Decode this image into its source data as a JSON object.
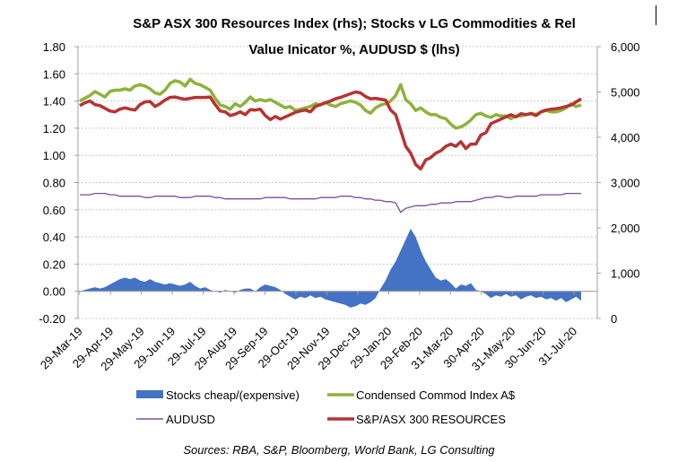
{
  "chart_data": {
    "type": "line",
    "title": "S&P ASX 300 Resources Index (rhs); Stocks v LG Commodities & Rel Value Inicator %, AUDUSD $ (lhs)",
    "title_lines": [
      "S&P ASX 300 Resources Index (rhs); Stocks v LG Commodities & Rel",
      "Value Inicator %, AUDUSD $ (lhs)"
    ],
    "xlabel": "",
    "ylabel_left": "",
    "ylabel_right": "",
    "y_left": {
      "range": [
        -0.2,
        1.8
      ],
      "ticks": [
        "1.80",
        "1.60",
        "1.40",
        "1.20",
        "1.00",
        "0.80",
        "0.60",
        "0.40",
        "0.20",
        "0.00",
        "-0.20"
      ],
      "tick_values": [
        1.8,
        1.6,
        1.4,
        1.2,
        1.0,
        0.8,
        0.6,
        0.4,
        0.2,
        0.0,
        -0.2
      ]
    },
    "y_right": {
      "range": [
        0,
        6000
      ],
      "ticks": [
        "6,000",
        "5,000",
        "4,000",
        "3,000",
        "2,000",
        "1,000",
        "0"
      ],
      "tick_values": [
        6000,
        5000,
        4000,
        3000,
        2000,
        1000,
        0
      ]
    },
    "x_ticks": [
      "29-Mar-19",
      "29-Apr-19",
      "29-May-19",
      "29-Jun-19",
      "29-Jul-19",
      "29-Aug-19",
      "29-Sep-19",
      "29-Oct-19",
      "29-Nov-19",
      "29-Dec-19",
      "29-Jan-20",
      "29-Feb-20",
      "31-Mar-20",
      "30-Apr-20",
      "31-May-20",
      "30-Jun-20",
      "31-Jul-20"
    ],
    "grid": true,
    "legend_position": "bottom",
    "source": "Sources: RBA, S&P, Bloomberg, World Bank, LG Consulting",
    "x_index_note": "values sampled approx. every 5 days from 29-Mar-19 to ~07-Aug-20 (index 0..100)",
    "series": [
      {
        "name": "Stocks cheap/(expensive)",
        "type": "area",
        "axis": "left",
        "color": "#4472C4",
        "values": [
          0.0,
          0.01,
          0.02,
          0.03,
          0.02,
          0.03,
          0.05,
          0.07,
          0.09,
          0.1,
          0.09,
          0.1,
          0.08,
          0.07,
          0.09,
          0.07,
          0.06,
          0.05,
          0.06,
          0.05,
          0.04,
          0.05,
          0.07,
          0.04,
          0.02,
          0.03,
          0.01,
          0.0,
          -0.01,
          0.01,
          0.0,
          -0.01,
          0.01,
          0.02,
          0.02,
          0.0,
          0.03,
          0.05,
          0.04,
          0.03,
          0.01,
          -0.02,
          -0.04,
          -0.06,
          -0.04,
          -0.05,
          -0.03,
          -0.05,
          -0.04,
          -0.06,
          -0.07,
          -0.08,
          -0.09,
          -0.1,
          -0.12,
          -0.11,
          -0.09,
          -0.1,
          -0.08,
          -0.05,
          0.02,
          0.08,
          0.16,
          0.22,
          0.3,
          0.38,
          0.46,
          0.4,
          0.3,
          0.22,
          0.16,
          0.1,
          0.08,
          0.09,
          0.06,
          0.02,
          0.05,
          0.04,
          0.06,
          0.01,
          0.0,
          -0.02,
          -0.05,
          -0.03,
          -0.04,
          -0.02,
          -0.04,
          -0.03,
          -0.06,
          -0.04,
          -0.03,
          -0.05,
          -0.04,
          -0.06,
          -0.05,
          -0.07,
          -0.05,
          -0.08,
          -0.06,
          -0.04,
          -0.07
        ]
      },
      {
        "name": "Condensed Commod Index A$",
        "type": "line",
        "axis": "left",
        "color": "#8DB33A",
        "values": [
          1.4,
          1.42,
          1.44,
          1.47,
          1.45,
          1.43,
          1.47,
          1.48,
          1.48,
          1.49,
          1.48,
          1.51,
          1.52,
          1.51,
          1.49,
          1.46,
          1.45,
          1.48,
          1.53,
          1.55,
          1.54,
          1.51,
          1.56,
          1.53,
          1.52,
          1.5,
          1.48,
          1.42,
          1.37,
          1.36,
          1.34,
          1.38,
          1.36,
          1.39,
          1.43,
          1.4,
          1.41,
          1.4,
          1.41,
          1.39,
          1.37,
          1.35,
          1.36,
          1.33,
          1.34,
          1.35,
          1.36,
          1.38,
          1.37,
          1.39,
          1.37,
          1.36,
          1.38,
          1.39,
          1.4,
          1.39,
          1.37,
          1.33,
          1.31,
          1.35,
          1.37,
          1.38,
          1.4,
          1.44,
          1.52,
          1.41,
          1.38,
          1.33,
          1.35,
          1.32,
          1.3,
          1.3,
          1.28,
          1.27,
          1.23,
          1.2,
          1.21,
          1.23,
          1.26,
          1.3,
          1.31,
          1.29,
          1.28,
          1.3,
          1.29,
          1.29,
          1.27,
          1.29,
          1.29,
          1.3,
          1.31,
          1.3,
          1.32,
          1.33,
          1.32,
          1.32,
          1.33,
          1.35,
          1.38,
          1.36,
          1.37
        ]
      },
      {
        "name": "AUDUSD",
        "type": "line",
        "axis": "left",
        "color": "#7B4F9E",
        "values": [
          0.71,
          0.71,
          0.71,
          0.72,
          0.72,
          0.72,
          0.71,
          0.71,
          0.7,
          0.7,
          0.7,
          0.7,
          0.7,
          0.69,
          0.69,
          0.7,
          0.7,
          0.7,
          0.7,
          0.7,
          0.69,
          0.69,
          0.69,
          0.7,
          0.7,
          0.7,
          0.7,
          0.69,
          0.69,
          0.68,
          0.68,
          0.68,
          0.68,
          0.68,
          0.68,
          0.68,
          0.68,
          0.69,
          0.69,
          0.69,
          0.69,
          0.69,
          0.68,
          0.68,
          0.68,
          0.68,
          0.68,
          0.68,
          0.69,
          0.69,
          0.69,
          0.69,
          0.7,
          0.7,
          0.7,
          0.69,
          0.69,
          0.68,
          0.68,
          0.67,
          0.67,
          0.66,
          0.66,
          0.65,
          0.58,
          0.61,
          0.62,
          0.63,
          0.63,
          0.63,
          0.64,
          0.64,
          0.65,
          0.65,
          0.65,
          0.66,
          0.66,
          0.66,
          0.66,
          0.67,
          0.68,
          0.69,
          0.69,
          0.7,
          0.7,
          0.69,
          0.69,
          0.7,
          0.7,
          0.7,
          0.7,
          0.7,
          0.71,
          0.71,
          0.71,
          0.71,
          0.71,
          0.72,
          0.72,
          0.72,
          0.72
        ]
      },
      {
        "name": "S&P/ASX 300 RESOURCES",
        "type": "line",
        "axis": "right",
        "color": "#B83232",
        "values": [
          4700,
          4760,
          4800,
          4720,
          4700,
          4640,
          4580,
          4560,
          4620,
          4650,
          4620,
          4600,
          4720,
          4780,
          4790,
          4680,
          4740,
          4820,
          4880,
          4890,
          4860,
          4840,
          4860,
          4880,
          4880,
          4880,
          4890,
          4720,
          4580,
          4560,
          4480,
          4510,
          4560,
          4500,
          4610,
          4600,
          4620,
          4480,
          4390,
          4460,
          4400,
          4450,
          4500,
          4550,
          4580,
          4600,
          4560,
          4680,
          4720,
          4760,
          4800,
          4850,
          4880,
          4920,
          4960,
          5000,
          4980,
          4900,
          4850,
          4860,
          4840,
          4820,
          4600,
          4500,
          4150,
          3800,
          3650,
          3400,
          3300,
          3500,
          3550,
          3650,
          3700,
          3800,
          3850,
          3800,
          3900,
          3750,
          3850,
          3850,
          4050,
          4100,
          4300,
          4350,
          4400,
          4450,
          4500,
          4450,
          4520,
          4500,
          4520,
          4480,
          4560,
          4600,
          4620,
          4630,
          4650,
          4680,
          4710,
          4780,
          4850
        ]
      }
    ]
  },
  "legend": [
    {
      "label": "Stocks cheap/(expensive)",
      "kind": "box",
      "color": "#4472C4"
    },
    {
      "label": "Condensed Commod Index A$",
      "kind": "thick-line",
      "color": "#8DB33A"
    },
    {
      "label": "AUDUSD",
      "kind": "thin-line",
      "color": "#7B4F9E"
    },
    {
      "label": "S&P/ASX 300 RESOURCES",
      "kind": "thick-line",
      "color": "#B83232"
    }
  ]
}
